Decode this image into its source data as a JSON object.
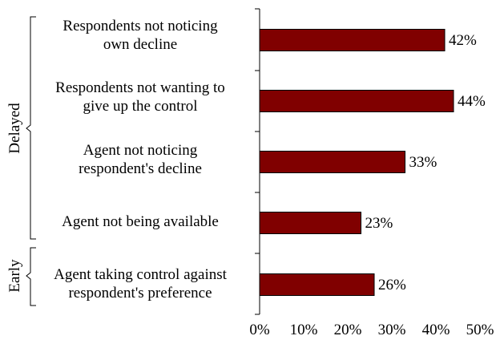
{
  "chart_data": {
    "type": "bar",
    "orientation": "horizontal",
    "categories": [
      "Respondents not noticing\nown decline",
      "Respondents not wanting to\ngive up the control",
      "Agent not noticing\nrespondent's decline",
      "Agent not being available",
      "Agent taking control against\nrespondent's preference"
    ],
    "values": [
      42,
      44,
      33,
      23,
      26
    ],
    "data_labels": [
      "42%",
      "44%",
      "33%",
      "23%",
      "26%"
    ],
    "xlim": [
      0,
      50
    ],
    "xticks": [
      0,
      10,
      20,
      30,
      40,
      50
    ],
    "xtick_labels": [
      "0%",
      "10%",
      "20%",
      "30%",
      "40%",
      "50%"
    ],
    "title": "",
    "xlabel": "",
    "ylabel": "",
    "grid": false,
    "legend": "none",
    "groups": [
      {
        "label": "Delayed",
        "categories": [
          0,
          1,
          2,
          3
        ]
      },
      {
        "label": "Early",
        "categories": [
          4
        ]
      }
    ],
    "bar_color": "#800000",
    "bar_edge_color": "#000000"
  }
}
